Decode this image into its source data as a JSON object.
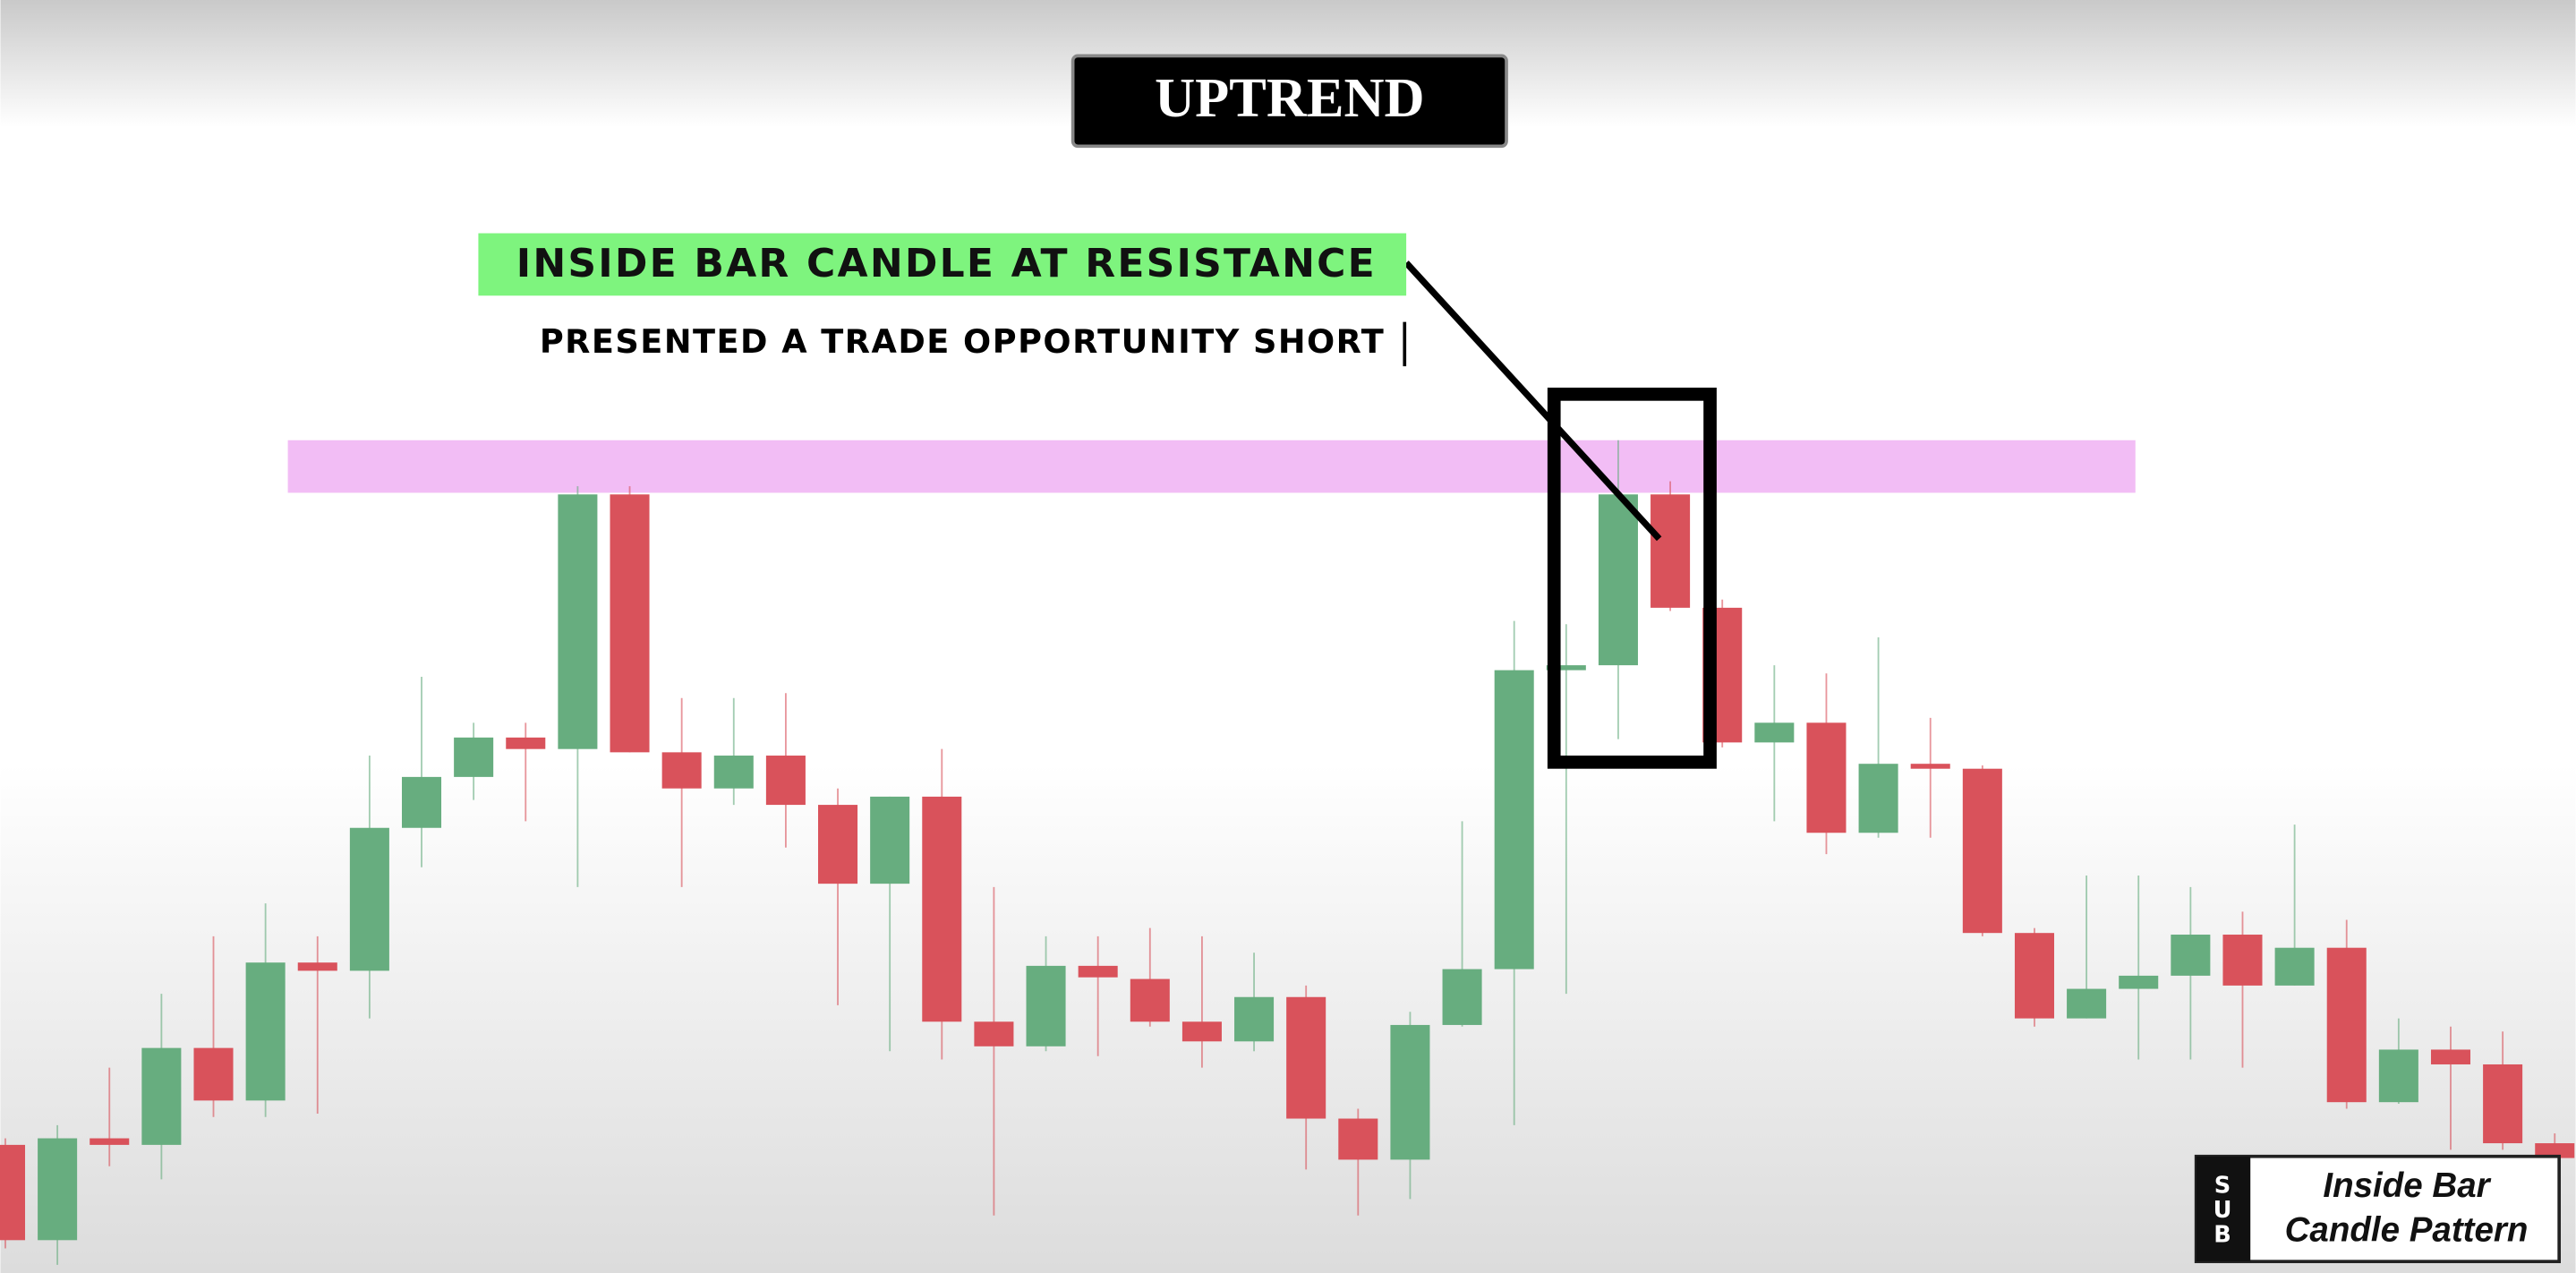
{
  "chart_data": {
    "type": "candlestick",
    "title": "UPTREND",
    "annotation": "INSIDE BAR CANDLE AT RESISTANCE",
    "subtitle": "PRESENTED A TRADE OPPORTUNITY SHORT",
    "categories": [
      null,
      null,
      null,
      null,
      null,
      null,
      null,
      null,
      null,
      null,
      null,
      null,
      null,
      null,
      null,
      null,
      null,
      null,
      null,
      null,
      null,
      null,
      null,
      null,
      null,
      null,
      null,
      null,
      null,
      null,
      null,
      null,
      null,
      null,
      null,
      null,
      null,
      null,
      null,
      null,
      null,
      null,
      null,
      null,
      null,
      null,
      null,
      null,
      null,
      null
    ],
    "open": [
      78,
      20,
      82,
      78,
      137,
      105,
      189,
      184,
      271,
      302,
      326,
      319,
      474,
      317,
      295,
      315,
      285,
      237,
      290,
      153,
      138,
      187,
      179,
      153,
      141,
      168,
      94,
      69,
      151,
      185,
      367,
      370,
      474,
      405,
      323,
      335,
      268,
      310,
      307,
      207,
      155,
      173,
      181,
      206,
      175,
      198,
      104,
      136,
      127,
      79
    ],
    "high": [
      82,
      90,
      125,
      170,
      205,
      225,
      205,
      315,
      363,
      335,
      335,
      479,
      479,
      350,
      350,
      353,
      295,
      290,
      319,
      235,
      205,
      205,
      210,
      205,
      195,
      175,
      100,
      159,
      275,
      397,
      395,
      507,
      482,
      410,
      370,
      365,
      387,
      338,
      309,
      210,
      242,
      242,
      235,
      220,
      273,
      215,
      155,
      150,
      147,
      85
    ],
    "low": [
      15,
      5,
      65,
      57,
      95,
      95,
      97,
      155,
      247,
      288,
      275,
      235,
      317,
      235,
      285,
      259,
      163,
      135,
      130,
      35,
      135,
      132,
      150,
      125,
      135,
      63,
      35,
      45,
      150,
      90,
      170,
      325,
      403,
      320,
      275,
      255,
      265,
      265,
      205,
      150,
      155,
      130,
      130,
      125,
      175,
      100,
      103,
      75,
      75,
      60
    ],
    "close": [
      20,
      82,
      78,
      137,
      105,
      189,
      184,
      271,
      302,
      326,
      319,
      474,
      317,
      295,
      315,
      285,
      237,
      290,
      153,
      138,
      187,
      180,
      153,
      141,
      168,
      94,
      69,
      151,
      185,
      367,
      370,
      474,
      405,
      323,
      335,
      268,
      310,
      307,
      207,
      155,
      173,
      181,
      206,
      175,
      198,
      104,
      136,
      127,
      79,
      70
    ],
    "up_color": "#67ad7f",
    "down_color": "#d9525b",
    "ylim": [
      0,
      775
    ]
  },
  "logo": {
    "letters": [
      "S",
      "U",
      "B"
    ],
    "caption": [
      "Inside Bar",
      "Candle Pattern"
    ]
  }
}
